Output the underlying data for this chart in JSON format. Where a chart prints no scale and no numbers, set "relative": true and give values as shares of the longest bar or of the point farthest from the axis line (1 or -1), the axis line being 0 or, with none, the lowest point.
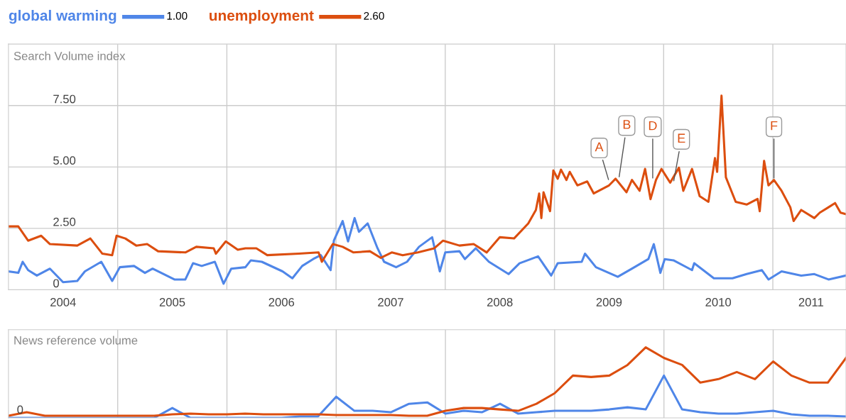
{
  "chart_data": [
    {
      "type": "line",
      "title": "Search Volume index",
      "legend": "top left",
      "grid": true,
      "xlim": [
        2004,
        2011.67
      ],
      "ylim": [
        0,
        10
      ],
      "yticks": [
        0,
        {
          "value": 2.5,
          "label": "2.50"
        },
        {
          "value": 5,
          "label": "5.00"
        },
        {
          "value": 7.5,
          "label": "7.50"
        }
      ],
      "xticks": [
        {
          "value": 2005,
          "label": null
        },
        {
          "value": 2006,
          "label": null
        },
        {
          "value": 2007,
          "label": null
        },
        {
          "value": 2008,
          "label": null
        },
        {
          "value": 2009,
          "label": null
        },
        {
          "value": 2010,
          "label": null
        },
        {
          "value": 2011,
          "label": null
        },
        {
          "value": 2004.5,
          "label": "2004"
        },
        {
          "value": 2005.5,
          "label": "2005"
        },
        {
          "value": 2006.5,
          "label": "2006"
        },
        {
          "value": 2007.5,
          "label": "2007"
        },
        {
          "value": 2008.5,
          "label": "2008"
        },
        {
          "value": 2009.5,
          "label": "2009"
        },
        {
          "value": 2010.5,
          "label": "2010"
        },
        {
          "value": 2011.35,
          "label": "2011"
        }
      ],
      "series": [
        {
          "name": "global warming",
          "color": "#4f86e8",
          "x": [
            2004.0,
            2004.09,
            2004.13,
            2004.18,
            2004.26,
            2004.38,
            2004.5,
            2004.63,
            2004.7,
            2004.85,
            2004.95,
            2005.02,
            2005.15,
            2005.25,
            2005.32,
            2005.52,
            2005.62,
            2005.69,
            2005.77,
            2005.89,
            2005.97,
            2006.04,
            2006.17,
            2006.22,
            2006.32,
            2006.51,
            2006.6,
            2006.69,
            2006.79,
            2006.86,
            2006.95,
            2006.98,
            2007.06,
            2007.11,
            2007.17,
            2007.21,
            2007.29,
            2007.38,
            2007.44,
            2007.55,
            2007.65,
            2007.76,
            2007.88,
            2007.95,
            2008.0,
            2008.13,
            2008.18,
            2008.28,
            2008.4,
            2008.58,
            2008.68,
            2008.85,
            2008.97,
            2009.03,
            2009.25,
            2009.28,
            2009.38,
            2009.58,
            2009.71,
            2009.86,
            2009.91,
            2009.97,
            2010.01,
            2010.09,
            2010.26,
            2010.28,
            2010.46,
            2010.63,
            2010.76,
            2010.9,
            2010.96,
            2011.08,
            2011.26,
            2011.38,
            2011.51,
            2011.67
          ],
          "values": [
            0.75,
            0.69,
            1.14,
            0.8,
            0.58,
            0.86,
            0.31,
            0.36,
            0.75,
            1.14,
            0.36,
            0.92,
            0.97,
            0.69,
            0.86,
            0.42,
            0.42,
            1.08,
            0.97,
            1.14,
            0.25,
            0.86,
            0.92,
            1.2,
            1.14,
            0.75,
            0.47,
            0.97,
            1.25,
            1.41,
            0.8,
            2.0,
            2.8,
            1.97,
            2.92,
            2.36,
            2.7,
            1.69,
            1.14,
            0.92,
            1.14,
            1.75,
            2.14,
            0.75,
            1.52,
            1.57,
            1.25,
            1.69,
            1.14,
            0.64,
            1.08,
            1.36,
            0.58,
            1.08,
            1.14,
            1.47,
            0.92,
            0.53,
            0.86,
            1.25,
            1.86,
            0.69,
            1.25,
            1.2,
            0.8,
            1.08,
            0.47,
            0.47,
            0.64,
            0.8,
            0.42,
            0.75,
            0.58,
            0.64,
            0.42,
            0.58
          ]
        },
        {
          "name": "unemployment",
          "color": "#dc4e0f",
          "x": [
            2004.0,
            2004.09,
            2004.18,
            2004.3,
            2004.38,
            2004.63,
            2004.75,
            2004.86,
            2004.95,
            2004.99,
            2005.07,
            2005.17,
            2005.27,
            2005.37,
            2005.62,
            2005.72,
            2005.88,
            2005.9,
            2005.99,
            2006.1,
            2006.17,
            2006.27,
            2006.37,
            2006.66,
            2006.84,
            2006.87,
            2006.97,
            2007.06,
            2007.16,
            2007.31,
            2007.41,
            2007.51,
            2007.61,
            2007.75,
            2007.9,
            2007.98,
            2008.13,
            2008.26,
            2008.38,
            2008.5,
            2008.63,
            2008.76,
            2008.83,
            2008.86,
            2008.88,
            2008.9,
            2008.96,
            2008.99,
            2009.03,
            2009.06,
            2009.11,
            2009.14,
            2009.21,
            2009.3,
            2009.36,
            2009.5,
            2009.56,
            2009.66,
            2009.71,
            2009.78,
            2009.83,
            2009.88,
            2009.93,
            2009.98,
            2010.06,
            2010.14,
            2010.18,
            2010.26,
            2010.33,
            2010.41,
            2010.47,
            2010.49,
            2010.53,
            2010.57,
            2010.66,
            2010.76,
            2010.86,
            2010.88,
            2010.92,
            2010.96,
            2011.01,
            2011.08,
            2011.16,
            2011.19,
            2011.26,
            2011.38,
            2011.43,
            2011.51,
            2011.57,
            2011.62,
            2011.67
          ],
          "values": [
            2.58,
            2.58,
            2.0,
            2.2,
            1.86,
            1.8,
            2.09,
            1.47,
            1.41,
            2.2,
            2.09,
            1.8,
            1.86,
            1.57,
            1.52,
            1.75,
            1.69,
            1.47,
            1.97,
            1.63,
            1.69,
            1.69,
            1.41,
            1.47,
            1.52,
            1.14,
            1.86,
            1.75,
            1.52,
            1.57,
            1.3,
            1.52,
            1.41,
            1.52,
            1.69,
            2.0,
            1.8,
            1.86,
            1.52,
            2.14,
            2.09,
            2.7,
            3.25,
            3.92,
            2.92,
            3.97,
            3.2,
            4.86,
            4.52,
            4.89,
            4.47,
            4.8,
            4.25,
            4.41,
            3.92,
            4.25,
            4.52,
            3.97,
            4.47,
            4.03,
            4.92,
            3.69,
            4.47,
            4.92,
            4.36,
            4.97,
            4.03,
            4.92,
            3.81,
            3.58,
            5.36,
            4.8,
            7.9,
            4.58,
            3.58,
            3.47,
            3.7,
            3.2,
            5.25,
            4.25,
            4.47,
            4.03,
            3.36,
            2.8,
            3.25,
            2.92,
            3.14,
            3.36,
            3.53,
            3.14,
            3.08
          ]
        }
      ],
      "annotations": [
        "1.00",
        "2.60",
        {
          "text": "A",
          "x": 2009.5,
          "y": 4.41
        },
        {
          "text": "B",
          "x": 2009.59,
          "y": 4.52
        },
        {
          "text": "D",
          "x": 2009.9,
          "y": 4.47
        },
        {
          "text": "E",
          "x": 2010.09,
          "y": 4.36
        },
        {
          "text": "F",
          "x": 2011.01,
          "y": 4.47
        }
      ]
    },
    {
      "type": "line",
      "title": "News reference volume",
      "relative": true,
      "grid": "x",
      "categories": [
        null,
        null,
        null,
        null,
        null,
        null,
        null,
        null,
        null,
        null,
        null,
        null,
        null,
        null,
        null,
        null,
        null,
        null,
        null,
        null,
        null,
        null,
        null,
        null,
        null,
        null,
        null,
        null,
        null,
        null,
        null,
        null,
        null,
        null,
        null,
        null,
        null,
        null,
        null,
        null,
        null,
        null,
        null,
        null,
        null,
        null,
        null
      ],
      "series": [
        {
          "color": "#4f86e8",
          "values": [
            0,
            0,
            0,
            0,
            0,
            0,
            0,
            0,
            0,
            0.14,
            0,
            0,
            0,
            0,
            0,
            0,
            0.02,
            0.02,
            0.3,
            0.1,
            0.1,
            0.08,
            0.2,
            0.22,
            0.06,
            0.1,
            0.08,
            0.2,
            0.06,
            0.08,
            0.1,
            0.1,
            0.1,
            0.12,
            0.15,
            0.12,
            0.6,
            0.12,
            0.08,
            0.06,
            0.06,
            0.08,
            0.1,
            0.05,
            0.03,
            0.03,
            0.02
          ]
        },
        {
          "color": "#dc4e0f",
          "values": [
            0.03,
            0.08,
            0.03,
            0.03,
            0.03,
            0.03,
            0.03,
            0.03,
            0.03,
            0.05,
            0.06,
            0.05,
            0.05,
            0.06,
            0.05,
            0.05,
            0.05,
            0.05,
            0.04,
            0.04,
            0.04,
            0.04,
            0.03,
            0.03,
            0.1,
            0.14,
            0.14,
            0.12,
            0.1,
            0.2,
            0.35,
            0.6,
            0.58,
            0.6,
            0.75,
            1.0,
            0.85,
            0.75,
            0.5,
            0.55,
            0.65,
            0.55,
            0.8,
            0.6,
            0.5,
            0.5,
            0.85
          ]
        }
      ],
      "annotations": [
        "0"
      ]
    }
  ]
}
